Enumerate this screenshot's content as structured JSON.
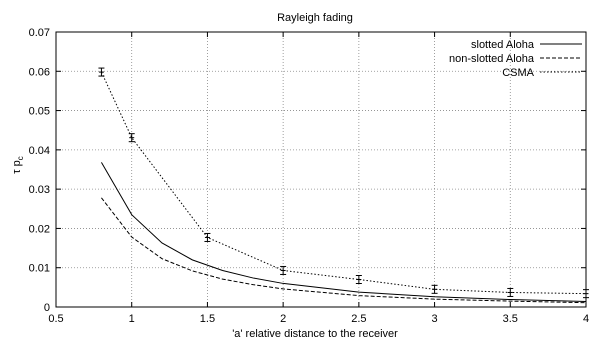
{
  "chart_data": {
    "type": "line",
    "title": "Rayleigh fading",
    "xlabel": "'a' relative distance to the receiver",
    "ylabel_main": "τ p",
    "ylabel_sub": "c",
    "xlim": [
      0.5,
      4
    ],
    "ylim": [
      0,
      0.07
    ],
    "x_ticks": [
      0.5,
      1,
      1.5,
      2,
      2.5,
      3,
      3.5,
      4
    ],
    "x_tick_labels": [
      "0.5",
      "1",
      "1.5",
      "2",
      "2.5",
      "3",
      "3.5",
      "4"
    ],
    "y_ticks": [
      0,
      0.01,
      0.02,
      0.03,
      0.04,
      0.05,
      0.06,
      0.07
    ],
    "y_tick_labels": [
      "0",
      "0.01",
      "0.02",
      "0.03",
      "0.04",
      "0.05",
      "0.06",
      "0.07"
    ],
    "grid": true,
    "legend_position": "top-right",
    "series": [
      {
        "name": "slotted Aloha",
        "style": "solid",
        "error_bars": false,
        "x": [
          0.8,
          1.0,
          1.2,
          1.4,
          1.6,
          1.8,
          2.0,
          2.5,
          3.0,
          3.5,
          4.0
        ],
        "y": [
          0.0368,
          0.0235,
          0.0163,
          0.012,
          0.0093,
          0.0074,
          0.006,
          0.0038,
          0.0026,
          0.0019,
          0.0014
        ]
      },
      {
        "name": "non-slotted Aloha",
        "style": "dashed",
        "error_bars": false,
        "x": [
          0.8,
          1.0,
          1.2,
          1.4,
          1.6,
          1.8,
          2.0,
          2.5,
          3.0,
          3.5,
          4.0
        ],
        "y": [
          0.0278,
          0.0178,
          0.0123,
          0.0092,
          0.0071,
          0.0057,
          0.0046,
          0.0029,
          0.002,
          0.0015,
          0.0011
        ]
      },
      {
        "name": "CSMA",
        "style": "dotted",
        "error_bars": true,
        "x": [
          0.8,
          1.0,
          1.5,
          2.0,
          2.5,
          3.0,
          3.5,
          4.0
        ],
        "y": [
          0.0598,
          0.0431,
          0.0177,
          0.0093,
          0.007,
          0.0045,
          0.0037,
          0.0034
        ]
      }
    ]
  }
}
